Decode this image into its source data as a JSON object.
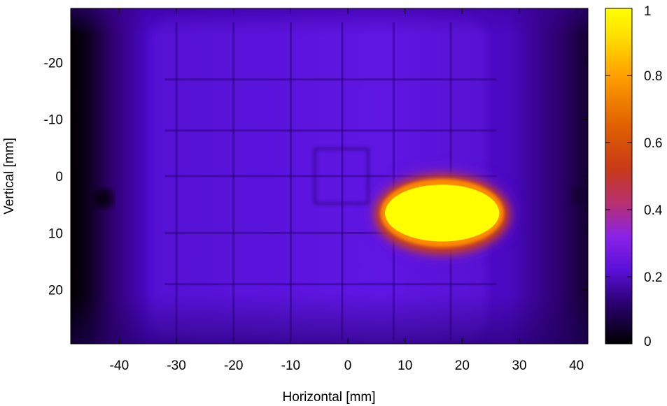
{
  "chart_data": {
    "type": "heatmap",
    "title": "",
    "xlabel": "Horizontal [mm]",
    "ylabel": "Vertical [mm]",
    "xlim": [
      -48.5,
      42
    ],
    "ylim": [
      29.5,
      -29.5
    ],
    "x_ticks": [
      -40,
      -30,
      -20,
      -10,
      0,
      10,
      20,
      30,
      40
    ],
    "y_ticks": [
      -20,
      -10,
      0,
      10,
      20
    ],
    "colorbar": {
      "range": [
        0,
        1
      ],
      "ticks": [
        0,
        0.2,
        0.4,
        0.6,
        0.8,
        1
      ],
      "palette": [
        "#000000",
        "#3a0090",
        "#7a1cf0",
        "#c83a8c",
        "#e64a10",
        "#ff9a00",
        "#ffff00"
      ]
    },
    "background_level": 0.18,
    "hotspot": {
      "center": [
        16.5,
        6.5
      ],
      "half_width_mm": 10,
      "half_height_mm": 5,
      "peak": 1.0
    },
    "grid_lines_x": [
      -30,
      -20,
      -10,
      -1,
      8,
      18
    ],
    "grid_lines_y": [
      -17,
      -8,
      0,
      10,
      19
    ]
  },
  "labels": {
    "x_ticks": [
      "-40",
      "-30",
      "-20",
      "-10",
      "0",
      "10",
      "20",
      "30",
      "40"
    ],
    "y_ticks": [
      "-20",
      "-10",
      "0",
      "10",
      "20"
    ],
    "cb_ticks": [
      "0",
      "0.2",
      "0.4",
      "0.6",
      "0.8",
      "1"
    ]
  }
}
